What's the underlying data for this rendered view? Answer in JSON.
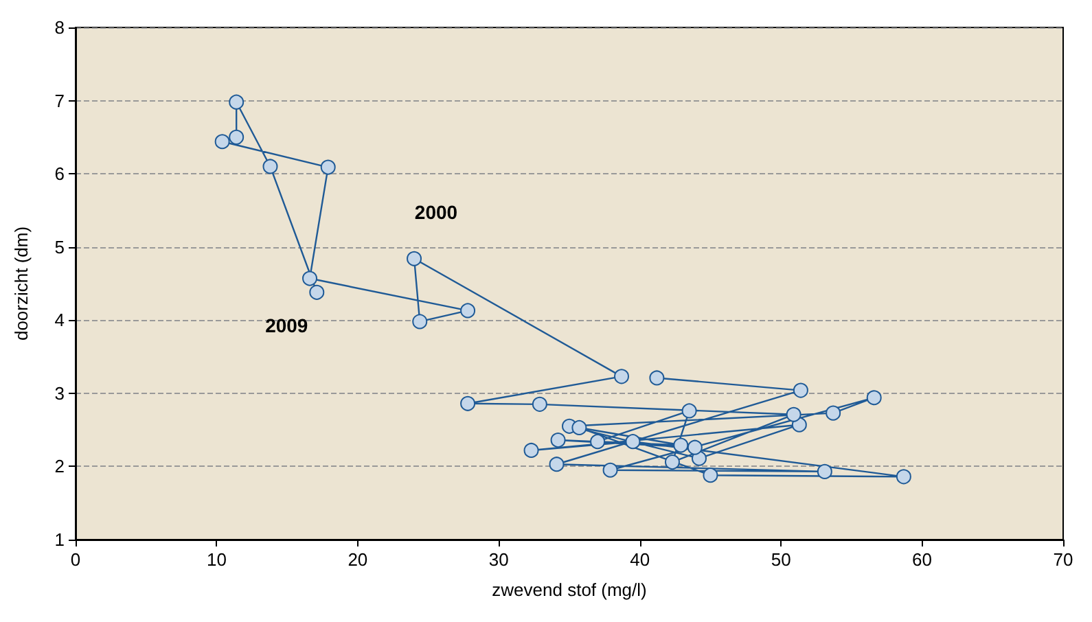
{
  "chart_data": {
    "type": "line",
    "xlabel": "zwevend stof (mg/l)",
    "ylabel": "doorzicht (dm)",
    "x": [
      41.2,
      51.4,
      34.1,
      53.1,
      37.9,
      56.6,
      53.7,
      35.0,
      44.2,
      51.3,
      32.3,
      39.5,
      58.7,
      45.0,
      35.7,
      43.9,
      34.2,
      42.9,
      37.0,
      43.5,
      42.3,
      50.9,
      32.9,
      27.8,
      38.7,
      24.0,
      24.4,
      27.8,
      16.6,
      17.9,
      10.4,
      11.4,
      11.4,
      13.8,
      17.1
    ],
    "series": [
      {
        "color": "#1f5a96",
        "values": [
          3.21,
          3.04,
          2.03,
          1.93,
          1.95,
          2.94,
          2.73,
          2.55,
          2.11,
          2.57,
          2.22,
          2.34,
          1.86,
          1.88,
          2.53,
          2.26,
          2.36,
          2.29,
          2.34,
          2.76,
          2.06,
          2.71,
          2.85,
          2.86,
          3.23,
          4.84,
          3.98,
          4.13,
          4.57,
          6.09,
          6.44,
          6.5,
          6.98,
          6.1,
          4.38
        ]
      }
    ],
    "xlim": [
      0,
      70
    ],
    "xticks": [
      0,
      10,
      20,
      30,
      40,
      50,
      60,
      70
    ],
    "ylim": [
      1,
      8
    ],
    "yticks": [
      1,
      2,
      3,
      4,
      5,
      6,
      7,
      8
    ],
    "grid": "y",
    "marker": "circle",
    "line_style": "solid",
    "annotations": [
      {
        "text": "2000",
        "x": 24.0,
        "y": 4.84
      },
      {
        "text": "2009",
        "x": 17.1,
        "y": 4.38
      }
    ]
  }
}
